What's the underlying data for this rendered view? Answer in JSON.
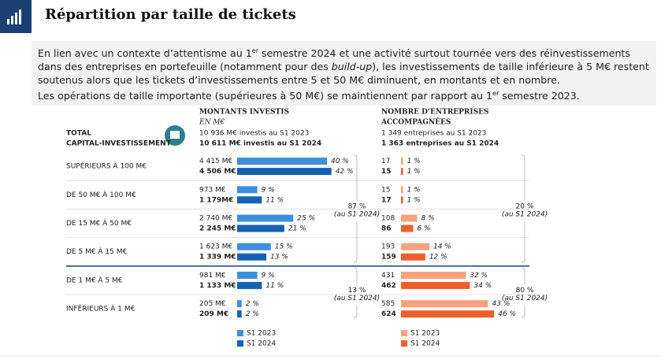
{
  "header": {
    "title": "Répartition par taille de tickets"
  },
  "intro": {
    "p1": [
      "En lien avec un contexte d’attentisme au 1",
      "er",
      " semestre 2024 et une activité surtout tournée vers des réinvestissements dans des entreprises en portefeuille (notamment pour des ",
      "build-up",
      "), les investissements de taille inférieure à 5 M€ restent soutenus alors que les tickets d’investissements entre 5 et 50 M€ diminuent, en montants et en nombre."
    ],
    "p2": [
      "Les opérations de taille importante (supérieures à 50 M€) se maintiennent par rapport au 1",
      "er",
      " semestre 2023."
    ]
  },
  "table": {
    "amount_header": "MONTANTS INVESTIS",
    "amount_unit": "EN M€",
    "count_header": [
      "NOMBRE D’ENTREPRISES",
      "ACCOMPAGNÉES"
    ],
    "total_label": [
      "TOTAL",
      "CAPITAL-INVESTISSEMENT"
    ],
    "total_amounts": [
      "10 936 M€ investis au S1 2023",
      "10 611 M€ investis au S1 2024"
    ],
    "total_counts": [
      "1 349 entreprises au S1 2023",
      "1 363 entreprises au S1 2024"
    ],
    "colors": {
      "amount": [
        "#3d8fdb",
        "#1562b3"
      ],
      "count": [
        "#f7a27c",
        "#ef5f2c"
      ]
    },
    "rows": [
      {
        "label": "SUPÉRIEURS À 100 M€",
        "amounts": [
          "4 415 M€",
          "4 506 M€"
        ],
        "amount_pct": [
          {
            "value": 40,
            "label": "40 %"
          },
          {
            "value": 42,
            "label": "42 %"
          }
        ],
        "counts": [
          17,
          15
        ],
        "count_pct": [
          {
            "value": 1,
            "label": "1 %"
          },
          {
            "value": 1,
            "label": "1 %"
          }
        ]
      },
      {
        "label": "DE 50 M€ À 100 M€",
        "amounts": [
          "973 M€",
          "1 179M€"
        ],
        "amount_pct": [
          {
            "value": 9,
            "label": "9 %"
          },
          {
            "value": 11,
            "label": "11 %"
          }
        ],
        "counts": [
          15,
          17
        ],
        "count_pct": [
          {
            "value": 1,
            "label": "1 %"
          },
          {
            "value": 1,
            "label": "1 %"
          }
        ]
      },
      {
        "label": "DE 15 M€ À 50 M€",
        "amounts": [
          "2 740 M€",
          "2 245 M€"
        ],
        "amount_pct": [
          {
            "value": 25,
            "label": "25 %"
          },
          {
            "value": 21,
            "label": "21 %"
          }
        ],
        "counts": [
          108,
          86
        ],
        "count_pct": [
          {
            "value": 8,
            "label": "8 %"
          },
          {
            "value": 6,
            "label": "6 %"
          }
        ]
      },
      {
        "label": "DE 5 M€ À 15 M€",
        "amounts": [
          "1 623 M€",
          "1 339 M€"
        ],
        "amount_pct": [
          {
            "value": 15,
            "label": "15 %"
          },
          {
            "value": 13,
            "label": "13 %"
          }
        ],
        "counts": [
          193,
          159
        ],
        "count_pct": [
          {
            "value": 14,
            "label": "14 %"
          },
          {
            "value": 12,
            "label": "12 %"
          }
        ]
      },
      {
        "label": "DE 1 M€ À 5 M€",
        "amounts": [
          "981 M€",
          "1 133 M€"
        ],
        "amount_pct": [
          {
            "value": 9,
            "label": "9 %"
          },
          {
            "value": 11,
            "label": "11 %"
          }
        ],
        "counts": [
          431,
          462
        ],
        "count_pct": [
          {
            "value": 32,
            "label": "32 %"
          },
          {
            "value": 34,
            "label": "34 %"
          }
        ]
      },
      {
        "label": "INFÉRIEURS À 1 M€",
        "amounts": [
          "205 M€",
          "209 M€"
        ],
        "amount_pct": [
          {
            "value": 2,
            "label": "2 %"
          },
          {
            "value": 2,
            "label": "2 %"
          }
        ],
        "counts": [
          585,
          624
        ],
        "count_pct": [
          {
            "value": 43,
            "label": "43 %"
          },
          {
            "value": 46,
            "label": "46 %"
          }
        ]
      }
    ],
    "groups": {
      "amount": [
        {
          "value": 87,
          "label": "87 %",
          "note": "(au S1 2024)"
        },
        {
          "value": 13,
          "label": "13 %",
          "note": "(au S1 2024)"
        }
      ],
      "count": [
        {
          "value": 20,
          "label": "20 %",
          "note": "(au S1 2024)"
        },
        {
          "value": 80,
          "label": "80 %",
          "note": "(au S1 2024)"
        }
      ]
    },
    "legend": [
      "S1 2023",
      "S1 2024"
    ]
  }
}
